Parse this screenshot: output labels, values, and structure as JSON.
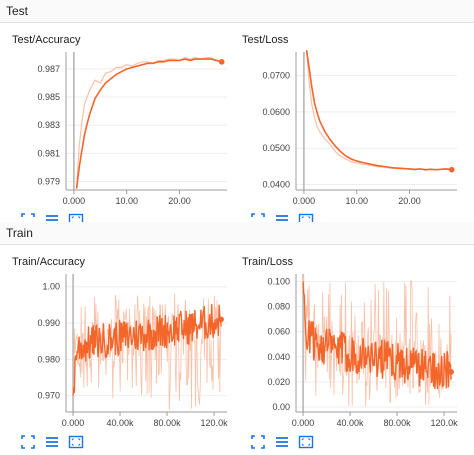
{
  "sections": [
    {
      "title": "Test"
    },
    {
      "title": "Train"
    }
  ],
  "icon_names": [
    "fit-domain-icon",
    "toggle-y-log-icon",
    "fullscreen-icon"
  ],
  "colors": {
    "series": "#f4652a",
    "series_faded": "#f9c0a8",
    "axis": "#9e9e9e",
    "grid": "#eeeeee",
    "icon": "#1a73e8"
  },
  "chart_data": [
    {
      "type": "line",
      "title": "Test/Accuracy",
      "x_ticks": [
        "0.000",
        "10.00",
        "20.00"
      ],
      "y_ticks": [
        "0.979",
        "0.981",
        "0.983",
        "0.985",
        "0.987"
      ],
      "xlim": [
        -1.5,
        29
      ],
      "ylim": [
        0.9784,
        0.9882
      ],
      "x": [
        0.5,
        1,
        1.5,
        2,
        2.5,
        3,
        4,
        5,
        6,
        7,
        8,
        9,
        10,
        11,
        12,
        13,
        14,
        15,
        16,
        17,
        18,
        19,
        20,
        21,
        22,
        23,
        24,
        25,
        26,
        27,
        28
      ],
      "values": [
        0.9785,
        0.98,
        0.9812,
        0.9823,
        0.9831,
        0.9838,
        0.9849,
        0.9855,
        0.986,
        0.9863,
        0.9866,
        0.9868,
        0.987,
        0.9871,
        0.9872,
        0.9873,
        0.9874,
        0.9874,
        0.9875,
        0.9875,
        0.9876,
        0.9876,
        0.9876,
        0.9877,
        0.9876,
        0.9877,
        0.9877,
        0.9877,
        0.9877,
        0.9876,
        0.9875
      ],
      "raw_values": [
        0.9785,
        0.9815,
        0.9832,
        0.9845,
        0.985,
        0.9855,
        0.9862,
        0.986,
        0.9867,
        0.9868,
        0.9871,
        0.9871,
        0.9873,
        0.9872,
        0.9874,
        0.9875,
        0.9875,
        0.9874,
        0.9876,
        0.9876,
        0.9877,
        0.9877,
        0.9876,
        0.9878,
        0.9877,
        0.9878,
        0.9877,
        0.9878,
        0.9878,
        0.9876,
        0.9875
      ]
    },
    {
      "type": "line",
      "title": "Test/Loss",
      "x_ticks": [
        "0.000",
        "10.00",
        "20.00"
      ],
      "y_ticks": [
        "0.0400",
        "0.0500",
        "0.0600",
        "0.0700"
      ],
      "xlim": [
        -1.5,
        29
      ],
      "ylim": [
        0.0385,
        0.0765
      ],
      "x": [
        0.5,
        1,
        1.5,
        2,
        2.5,
        3,
        4,
        5,
        6,
        7,
        8,
        9,
        10,
        11,
        12,
        13,
        14,
        15,
        16,
        17,
        18,
        19,
        20,
        21,
        22,
        23,
        24,
        25,
        26,
        27,
        28
      ],
      "values": [
        0.077,
        0.072,
        0.0668,
        0.0625,
        0.0598,
        0.0575,
        0.0545,
        0.0523,
        0.0505,
        0.049,
        0.0478,
        0.047,
        0.0465,
        0.0461,
        0.0458,
        0.0455,
        0.0452,
        0.045,
        0.0448,
        0.0446,
        0.0445,
        0.0444,
        0.0443,
        0.0442,
        0.0443,
        0.0441,
        0.0442,
        0.0441,
        0.0442,
        0.0443,
        0.0441
      ],
      "raw_values": [
        0.077,
        0.068,
        0.062,
        0.0585,
        0.056,
        0.0545,
        0.0525,
        0.051,
        0.049,
        0.0478,
        0.047,
        0.0462,
        0.046,
        0.0456,
        0.0455,
        0.0451,
        0.0449,
        0.0448,
        0.0446,
        0.0444,
        0.0444,
        0.0443,
        0.0442,
        0.044,
        0.0443,
        0.0439,
        0.0443,
        0.044,
        0.0443,
        0.0444,
        0.0441
      ]
    },
    {
      "type": "line",
      "title": "Train/Accuracy",
      "x_ticks": [
        "0.000",
        "40.00k",
        "80.00k",
        "120.0k"
      ],
      "y_ticks": [
        "0.970",
        "0.980",
        "0.990",
        "1.00"
      ],
      "xlim": [
        -6000,
        131000
      ],
      "ylim": [
        0.9655,
        1.0035
      ],
      "x_start": 0,
      "x_end": 126000,
      "noisy": true,
      "band": [
        0.966,
        1.0
      ],
      "trend": [
        [
          0,
          0.97
        ],
        [
          3000,
          0.983
        ],
        [
          20000,
          0.985
        ],
        [
          60000,
          0.987
        ],
        [
          100000,
          0.989
        ],
        [
          126000,
          0.991
        ]
      ],
      "noise": 0.005,
      "last_point": 0.991
    },
    {
      "type": "line",
      "title": "Train/Loss",
      "x_ticks": [
        "0.000",
        "40.00k",
        "80.00k",
        "120.0k"
      ],
      "y_ticks": [
        "0.00",
        "0.020",
        "0.040",
        "0.060",
        "0.080",
        "0.100"
      ],
      "xlim": [
        -6000,
        131000
      ],
      "ylim": [
        -0.004,
        0.106
      ],
      "x_start": 0,
      "x_end": 126000,
      "noisy": true,
      "band": [
        0.0,
        0.106
      ],
      "trend": [
        [
          0,
          0.1
        ],
        [
          3000,
          0.055
        ],
        [
          30000,
          0.045
        ],
        [
          70000,
          0.038
        ],
        [
          100000,
          0.032
        ],
        [
          126000,
          0.028
        ]
      ],
      "noise": 0.016,
      "last_point": 0.028
    }
  ]
}
